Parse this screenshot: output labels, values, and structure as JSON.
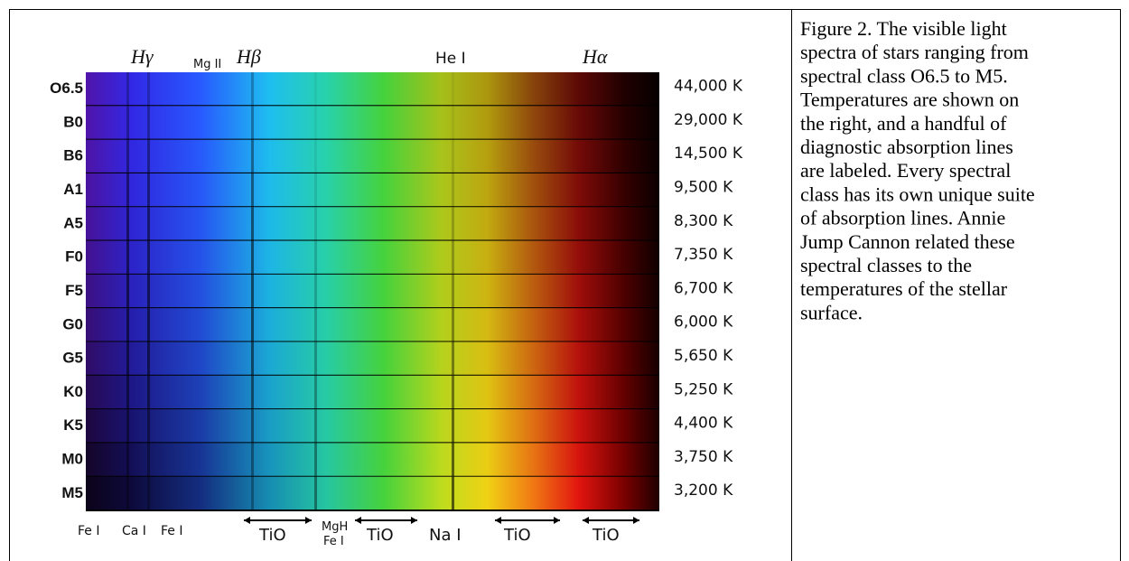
{
  "spectra": {
    "classes": [
      "O6.5",
      "B0",
      "B6",
      "A1",
      "A5",
      "F0",
      "F5",
      "G0",
      "G5",
      "K0",
      "K5",
      "M0",
      "M5"
    ],
    "temperatures": [
      "44,000 K",
      "29,000 K",
      "14,500 K",
      "9,500 K",
      "8,300 K",
      "7,350 K",
      "6,700 K",
      "6,000 K",
      "5,650 K",
      "5,250 K",
      "4,400 K",
      "3,750 K",
      "3,200 K"
    ]
  },
  "top_labels": [
    "Hγ",
    "Mg II",
    "Hβ",
    "He I",
    "Hα"
  ],
  "bottom_labels": [
    "Fe I",
    "Ca I",
    "Fe I",
    "TiO",
    "MgH",
    "Fe I",
    "TiO",
    "Na I",
    "TiO",
    "TiO"
  ],
  "caption": [
    "Figure 2. The visible light",
    "spectra of stars ranging from",
    "spectral class O6.5 to M5.",
    "Temperatures are shown on",
    "the right, and a handful of",
    "diagnostic absorption lines",
    "are labeled. Every spectral",
    "class has its own unique suite",
    "of absorption lines. Annie",
    "Jump Cannon related these",
    "spectral classes to the",
    "temperatures of the stellar",
    "surface."
  ]
}
